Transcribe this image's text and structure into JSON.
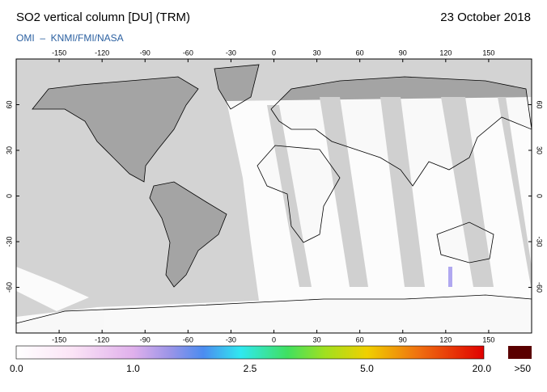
{
  "header": {
    "title": "SO2 vertical column [DU] (TRM)",
    "date": "23 October 2018",
    "credit": "OMI  –  KNMI/FMI/NASA"
  },
  "map": {
    "xlim": [
      -180,
      180
    ],
    "ylim": [
      -90,
      90
    ],
    "xticks": [
      -150,
      -120,
      -90,
      -60,
      -30,
      0,
      30,
      60,
      90,
      120,
      150
    ],
    "yticks": [
      -60,
      -30,
      0,
      30,
      60
    ]
  },
  "colorbar": {
    "labels": [
      "0.0",
      "1.0",
      "2.5",
      "5.0",
      "20.0"
    ],
    "overflow_label": ">50"
  }
}
